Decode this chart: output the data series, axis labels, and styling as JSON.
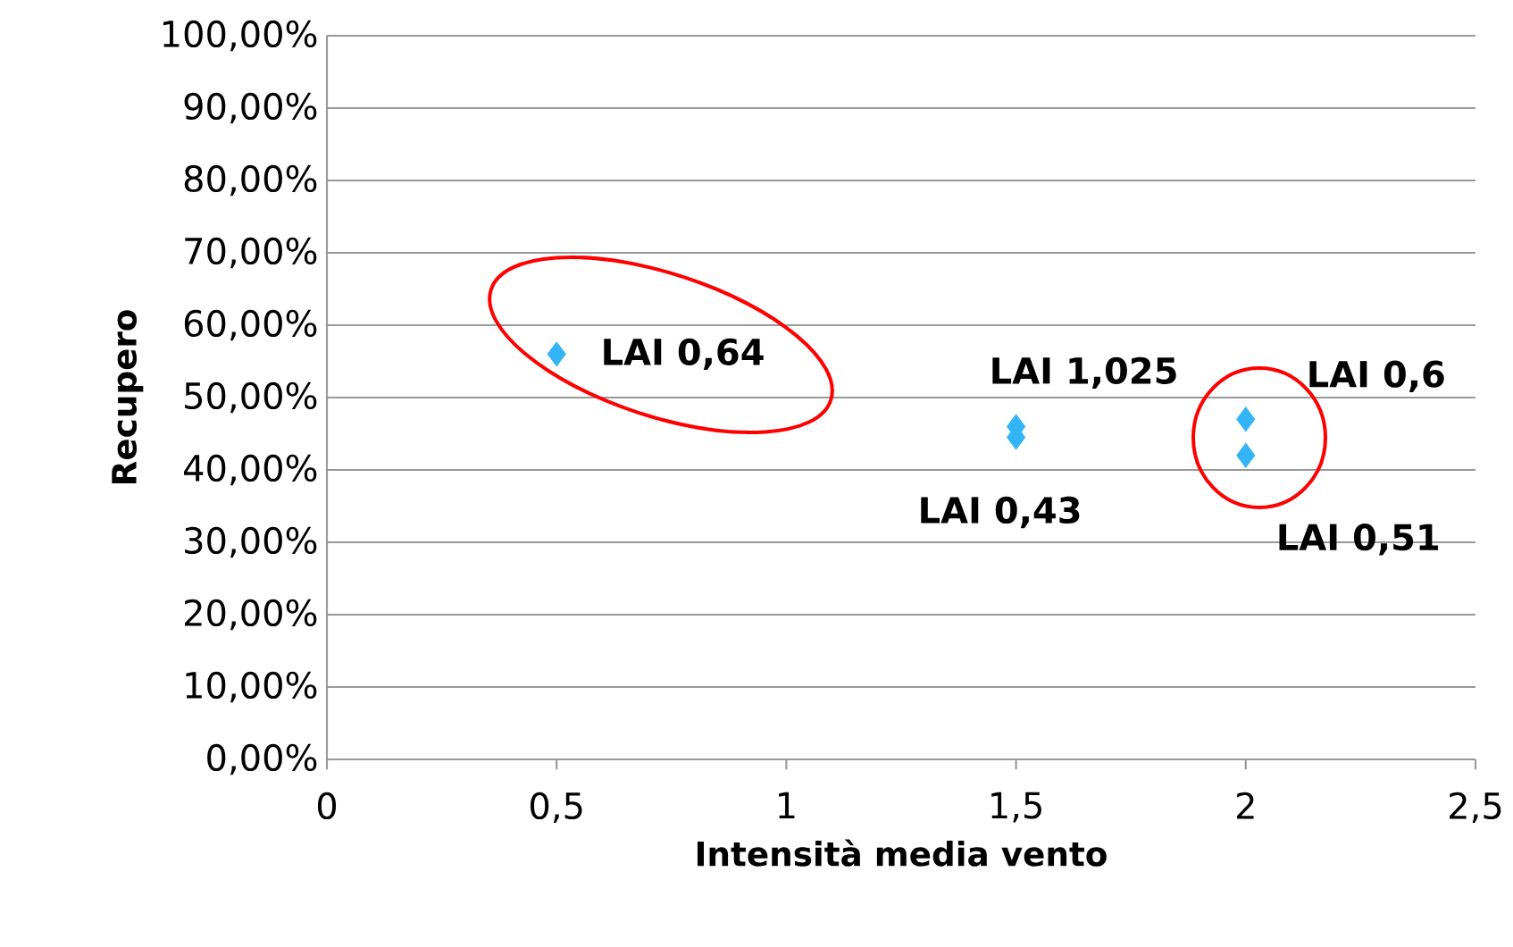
{
  "chart_data": {
    "type": "scatter",
    "xlabel": "Intensità media vento",
    "ylabel": "Recupero",
    "x": [
      0.5,
      1.5,
      1.5,
      2,
      2
    ],
    "values": [
      56,
      46,
      44.5,
      47,
      42
    ],
    "color": "#33b5f5",
    "marker": "diamond",
    "grid": "y",
    "xlim": [
      0,
      2.5
    ],
    "ylim": [
      0,
      100
    ],
    "xticks": [
      {
        "value": 0,
        "label": "0"
      },
      {
        "value": 0.5,
        "label": "0,5"
      },
      {
        "value": 1,
        "label": "1"
      },
      {
        "value": 1.5,
        "label": "1,5"
      },
      {
        "value": 2,
        "label": "2"
      },
      {
        "value": 2.5,
        "label": "2,5"
      }
    ],
    "yticks": [
      {
        "value": 0,
        "label": "0,00%"
      },
      {
        "value": 10,
        "label": "10,00%"
      },
      {
        "value": 20,
        "label": "20,00%"
      },
      {
        "value": 30,
        "label": "30,00%"
      },
      {
        "value": 40,
        "label": "40,00%"
      },
      {
        "value": 50,
        "label": "50,00%"
      },
      {
        "value": 60,
        "label": "60,00%"
      },
      {
        "value": 70,
        "label": "70,00%"
      },
      {
        "value": 80,
        "label": "80,00%"
      },
      {
        "value": 90,
        "label": "90,00%"
      },
      {
        "value": 100,
        "label": "100,00%"
      }
    ],
    "annotations": [
      {
        "text": "LAI 0,64",
        "x": 0.5,
        "y": 56
      },
      {
        "text": "LAI 1,025",
        "x": 1.5,
        "y": 46
      },
      {
        "text": "LAI 0,43",
        "x": 1.5,
        "y": 44.5
      },
      {
        "text": "LAI 0,6",
        "x": 2,
        "y": 47
      },
      {
        "text": "LAI 0,51",
        "x": 2,
        "y": 42
      }
    ]
  }
}
